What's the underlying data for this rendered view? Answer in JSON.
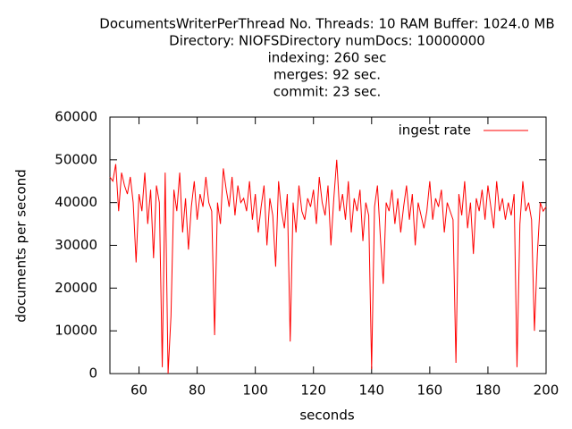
{
  "chart_data": {
    "type": "line",
    "title_lines": [
      "DocumentsWriterPerThread No. Threads: 10 RAM Buffer: 1024.0 MB",
      "Directory: NIOFSDirectory numDocs: 10000000",
      "indexing: 260 sec",
      "merges: 92 sec.",
      "commit: 23 sec."
    ],
    "x_label": "seconds",
    "y_label": "documents per second",
    "xlim": [
      50,
      200
    ],
    "xticks": [
      60,
      80,
      100,
      120,
      140,
      160,
      180,
      200
    ],
    "ylim": [
      0,
      60000
    ],
    "yticks": [
      0,
      10000,
      20000,
      30000,
      40000,
      50000,
      60000
    ],
    "legend": "top-right",
    "x": [
      50,
      51,
      52,
      53,
      54,
      55,
      56,
      57,
      58,
      59,
      60,
      61,
      62,
      63,
      64,
      65,
      66,
      67,
      68,
      69,
      70,
      71,
      72,
      73,
      74,
      75,
      76,
      77,
      78,
      79,
      80,
      81,
      82,
      83,
      84,
      85,
      86,
      87,
      88,
      89,
      90,
      91,
      92,
      93,
      94,
      95,
      96,
      97,
      98,
      99,
      100,
      101,
      102,
      103,
      104,
      105,
      106,
      107,
      108,
      109,
      110,
      111,
      112,
      113,
      114,
      115,
      116,
      117,
      118,
      119,
      120,
      121,
      122,
      123,
      124,
      125,
      126,
      127,
      128,
      129,
      130,
      131,
      132,
      133,
      134,
      135,
      136,
      137,
      138,
      139,
      140,
      141,
      142,
      143,
      144,
      145,
      146,
      147,
      148,
      149,
      150,
      151,
      152,
      153,
      154,
      155,
      156,
      157,
      158,
      159,
      160,
      161,
      162,
      163,
      164,
      165,
      166,
      167,
      168,
      169,
      170,
      171,
      172,
      173,
      174,
      175,
      176,
      177,
      178,
      179,
      180,
      181,
      182,
      183,
      184,
      185,
      186,
      187,
      188,
      189,
      190,
      191,
      192,
      193,
      194,
      195,
      196,
      197,
      198,
      199,
      200
    ],
    "series": [
      {
        "name": "ingest rate",
        "color": "#ff0000",
        "values": [
          46000,
          45000,
          49000,
          38000,
          47000,
          44000,
          42000,
          46000,
          40000,
          26000,
          42000,
          38000,
          47000,
          35000,
          43000,
          27000,
          44000,
          40000,
          1500,
          47000,
          0,
          13500,
          43000,
          38000,
          47000,
          33000,
          41000,
          29000,
          39000,
          45000,
          36000,
          42000,
          39000,
          46000,
          40000,
          38000,
          9000,
          40000,
          35000,
          48000,
          43000,
          39000,
          46000,
          37000,
          44000,
          40000,
          41000,
          38000,
          45000,
          36000,
          42000,
          33000,
          39000,
          44000,
          30000,
          41000,
          37000,
          25000,
          45000,
          38000,
          34000,
          42000,
          7500,
          40000,
          33000,
          44000,
          38000,
          36000,
          41000,
          39000,
          43000,
          35000,
          46000,
          40000,
          37000,
          44000,
          30000,
          41000,
          50000,
          38000,
          42000,
          36000,
          45000,
          33000,
          41000,
          38000,
          43000,
          31000,
          40000,
          37000,
          1000,
          39000,
          44000,
          32000,
          21000,
          40000,
          38000,
          43000,
          35000,
          41000,
          33000,
          39000,
          44000,
          36000,
          42000,
          30000,
          40000,
          37000,
          34000,
          38000,
          45000,
          36000,
          41000,
          39000,
          43000,
          33000,
          40000,
          38000,
          36000,
          2500,
          42000,
          37000,
          45000,
          34000,
          40000,
          28000,
          41000,
          38000,
          43000,
          36000,
          44000,
          39000,
          34000,
          45000,
          38000,
          41000,
          36000,
          40000,
          37000,
          42000,
          1500,
          35000,
          45000,
          38000,
          40000,
          36000,
          10000,
          28000,
          40000,
          38000,
          39000
        ]
      }
    ]
  }
}
